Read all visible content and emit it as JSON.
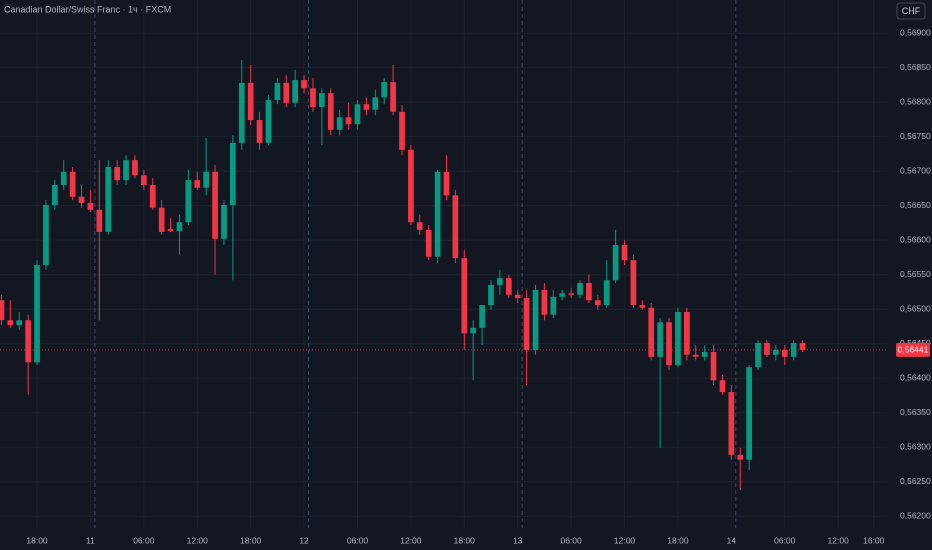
{
  "chart_data": {
    "type": "candlestick",
    "title": "Canadian Dollar/Swiss Franc · 1ч · FXCM",
    "currency": "CHF",
    "up_color": "#089981",
    "down_color": "#f23645",
    "grid": true,
    "xlim": [
      -0.16,
      99.6
    ],
    "xticks": [
      {
        "value": 4,
        "label": "18:00"
      },
      {
        "value": 10,
        "label": "11"
      },
      {
        "value": 16,
        "label": "06:00"
      },
      {
        "value": 22,
        "label": "12:00"
      },
      {
        "value": 28,
        "label": "18:00"
      },
      {
        "value": 34,
        "label": "12"
      },
      {
        "value": 40,
        "label": "06:00"
      },
      {
        "value": 46,
        "label": "12:00"
      },
      {
        "value": 52,
        "label": "18:00"
      },
      {
        "value": 58,
        "label": "13"
      },
      {
        "value": 64,
        "label": "06:00"
      },
      {
        "value": 70,
        "label": "12:00"
      },
      {
        "value": 76,
        "label": "18:00"
      },
      {
        "value": 82,
        "label": "14"
      },
      {
        "value": 88,
        "label": "06:00"
      },
      {
        "value": 94,
        "label": "12:00"
      },
      {
        "value": 98,
        "label": "16:00"
      }
    ],
    "ylim": [
      0.56183,
      0.56948
    ],
    "yticks": [
      {
        "value": 0.569,
        "label": "0,56900"
      },
      {
        "value": 0.5685,
        "label": "0,56850"
      },
      {
        "value": 0.568,
        "label": "0,56800"
      },
      {
        "value": 0.5675,
        "label": "0,56750"
      },
      {
        "value": 0.567,
        "label": "0,56700"
      },
      {
        "value": 0.5665,
        "label": "0,56650"
      },
      {
        "value": 0.566,
        "label": "0,56600"
      },
      {
        "value": 0.5655,
        "label": "0,56550"
      },
      {
        "value": 0.565,
        "label": "0,56500"
      },
      {
        "value": 0.5645,
        "label": "0,56450"
      },
      {
        "value": 0.564,
        "label": "0,56400"
      },
      {
        "value": 0.5635,
        "label": "0,56350"
      },
      {
        "value": 0.563,
        "label": "0,56300"
      },
      {
        "value": 0.5625,
        "label": "0,56250"
      },
      {
        "value": 0.562,
        "label": "0,56200"
      }
    ],
    "last_price": {
      "value": 0.56441,
      "label": "0,56441"
    },
    "open": [
      0.56513,
      0.56484,
      0.56477,
      0.56484,
      0.56423,
      0.56564,
      0.56651,
      0.5668,
      0.56699,
      0.56663,
      0.56654,
      0.56644,
      0.56612,
      0.56706,
      0.56687,
      0.56716,
      0.56694,
      0.5668,
      0.56647,
      0.56616,
      0.56613,
      0.56626,
      0.56687,
      0.56676,
      0.56699,
      0.56602,
      0.56651,
      0.56741,
      0.56828,
      0.56774,
      0.56741,
      0.56803,
      0.56828,
      0.56799,
      0.56832,
      0.5682,
      0.56793,
      0.56813,
      0.5676,
      0.56778,
      0.56768,
      0.56797,
      0.56789,
      0.56807,
      0.56829,
      0.56786,
      0.56731,
      0.56626,
      0.56615,
      0.56576,
      0.56699,
      0.56665,
      0.56574,
      0.56465,
      0.56473,
      0.56506,
      0.56535,
      0.56545,
      0.56521,
      0.56516,
      0.56441,
      0.56528,
      0.56492,
      0.56518,
      0.56523,
      0.56521,
      0.56538,
      0.56513,
      0.56506,
      0.56542,
      0.56593,
      0.56571,
      0.56506,
      0.56502,
      0.56431,
      0.56481,
      0.56419,
      0.56496,
      0.56434,
      0.56431,
      0.56438,
      0.56397,
      0.5638,
      0.56289,
      0.56282,
      0.56416,
      0.56451,
      0.56434,
      0.56441,
      0.56431,
      0.56451
    ],
    "high": [
      0.56521,
      0.56513,
      0.56496,
      0.56492,
      0.56571,
      0.56658,
      0.56687,
      0.56716,
      0.56706,
      0.5668,
      0.56673,
      0.56716,
      0.56716,
      0.56716,
      0.56723,
      0.56723,
      0.56702,
      0.5669,
      0.56658,
      0.56632,
      0.56637,
      0.56702,
      0.56699,
      0.56748,
      0.56709,
      0.56658,
      0.56752,
      0.56861,
      0.56854,
      0.56786,
      0.5681,
      0.56835,
      0.56839,
      0.56847,
      0.56839,
      0.56835,
      0.5682,
      0.5682,
      0.56789,
      0.56799,
      0.56803,
      0.56807,
      0.56818,
      0.56835,
      0.56854,
      0.56796,
      0.56738,
      0.56637,
      0.56622,
      0.56702,
      0.56723,
      0.56673,
      0.56586,
      0.56484,
      0.56506,
      0.56542,
      0.56557,
      0.5655,
      0.56528,
      0.56528,
      0.56535,
      0.56538,
      0.56528,
      0.56528,
      0.56531,
      0.56542,
      0.5655,
      0.56521,
      0.56571,
      0.56615,
      0.566,
      0.56579,
      0.56513,
      0.56509,
      0.56487,
      0.56487,
      0.56502,
      0.56502,
      0.56448,
      0.56448,
      0.56448,
      0.56405,
      0.5639,
      0.56299,
      0.56419,
      0.56455,
      0.56455,
      0.56448,
      0.56448,
      0.56455,
      0.56455
    ],
    "low": [
      0.56477,
      0.56473,
      0.5647,
      0.56376,
      0.56419,
      0.56557,
      0.56644,
      0.56673,
      0.56658,
      0.56647,
      0.56641,
      0.56484,
      0.56608,
      0.5668,
      0.5668,
      0.5669,
      0.56673,
      0.56644,
      0.56608,
      0.56612,
      0.56579,
      0.56622,
      0.56673,
      0.56665,
      0.5655,
      0.56593,
      0.56542,
      0.56731,
      0.56767,
      0.56731,
      0.56738,
      0.56797,
      0.56793,
      0.56793,
      0.56813,
      0.56786,
      0.56738,
      0.56752,
      0.56752,
      0.5676,
      0.5676,
      0.56781,
      0.56781,
      0.56797,
      0.56781,
      0.56723,
      0.56622,
      0.56608,
      0.56571,
      0.56567,
      0.56658,
      0.56567,
      0.56441,
      0.56397,
      0.56448,
      0.56499,
      0.56521,
      0.56516,
      0.56509,
      0.5639,
      0.56434,
      0.56484,
      0.56487,
      0.56513,
      0.56516,
      0.56516,
      0.56509,
      0.56499,
      0.56502,
      0.56538,
      0.56564,
      0.56502,
      0.56499,
      0.56426,
      0.56299,
      0.56412,
      0.56416,
      0.56426,
      0.56426,
      0.56426,
      0.5639,
      0.56376,
      0.56282,
      0.56238,
      0.56267,
      0.56412,
      0.56431,
      0.56426,
      0.56419,
      0.56426,
      0.56438
    ],
    "close": [
      0.56484,
      0.56477,
      0.56484,
      0.56423,
      0.56564,
      0.56651,
      0.5668,
      0.56699,
      0.56663,
      0.56654,
      0.56644,
      0.56612,
      0.56706,
      0.56687,
      0.56716,
      0.56694,
      0.5668,
      0.56647,
      0.56612,
      0.56613,
      0.56626,
      0.56687,
      0.56676,
      0.56699,
      0.56602,
      0.56651,
      0.56741,
      0.56828,
      0.56774,
      0.56741,
      0.56803,
      0.56828,
      0.56799,
      0.56832,
      0.5682,
      0.56793,
      0.56813,
      0.5676,
      0.56778,
      0.56768,
      0.56797,
      0.56789,
      0.56807,
      0.56829,
      0.56786,
      0.56731,
      0.56626,
      0.56615,
      0.56576,
      0.56699,
      0.56665,
      0.56574,
      0.56465,
      0.56473,
      0.56506,
      0.56535,
      0.56545,
      0.56521,
      0.56516,
      0.56441,
      0.56528,
      0.56492,
      0.56518,
      0.56523,
      0.56521,
      0.56538,
      0.56513,
      0.56506,
      0.56542,
      0.56593,
      0.56571,
      0.56506,
      0.56502,
      0.56431,
      0.56481,
      0.56419,
      0.56496,
      0.56434,
      0.56431,
      0.56438,
      0.56397,
      0.5638,
      0.56289,
      0.56282,
      0.56416,
      0.56451,
      0.56434,
      0.56441,
      0.56431,
      0.56451,
      0.56441
    ]
  }
}
